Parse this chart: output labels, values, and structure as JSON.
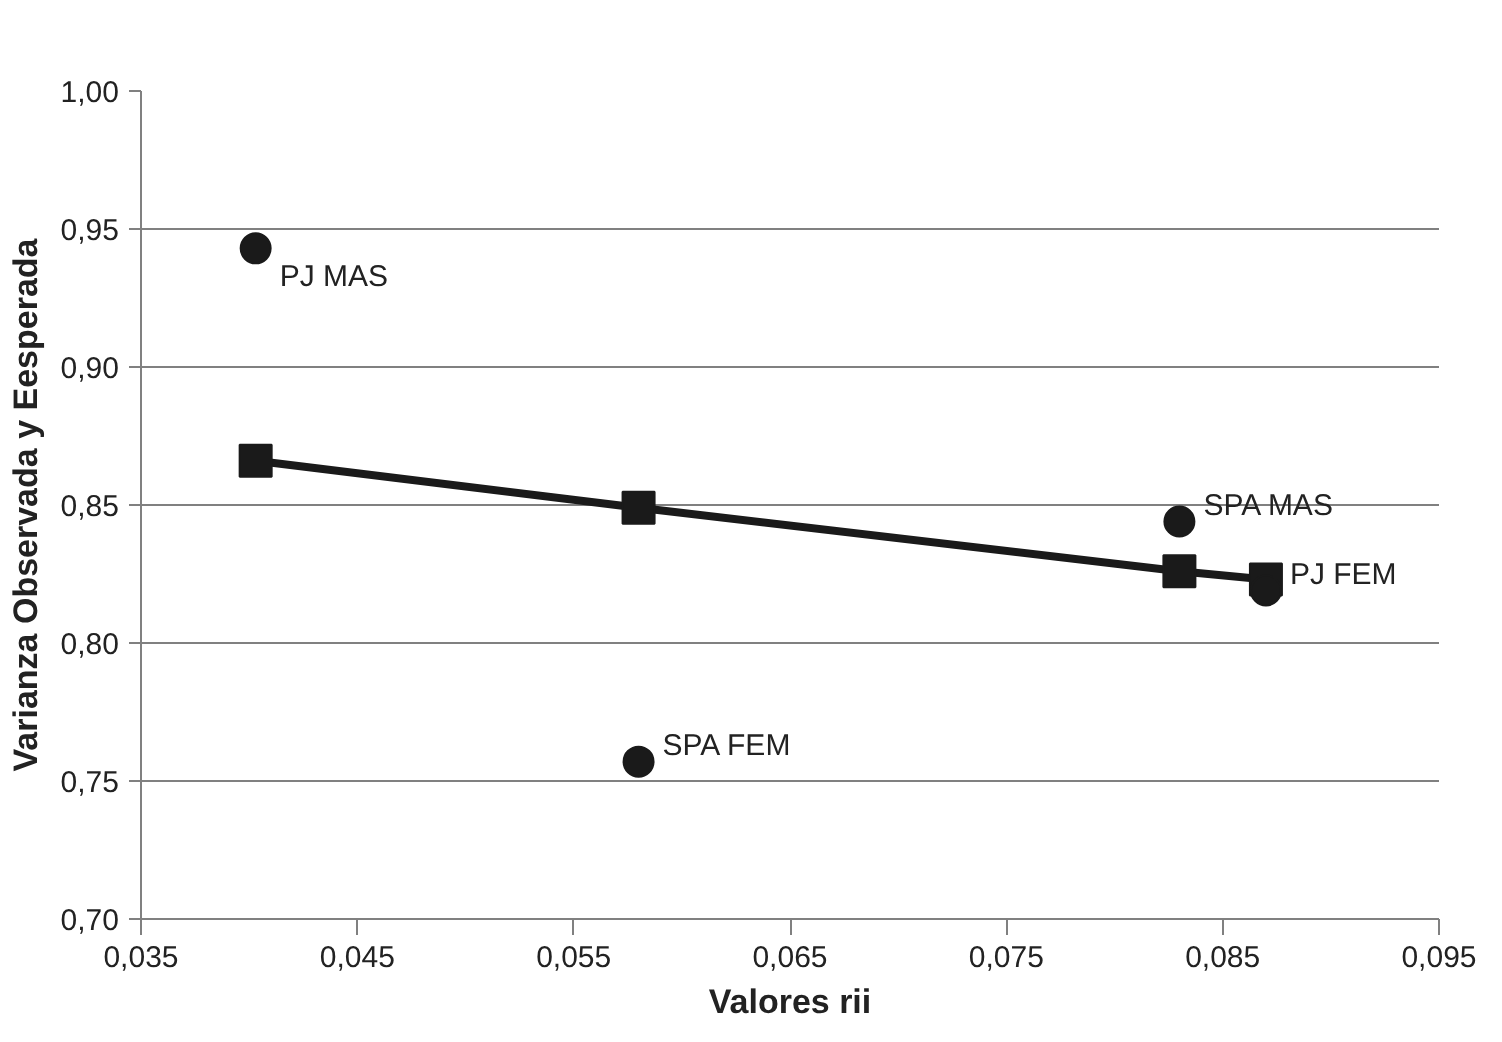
{
  "chart_data": {
    "type": "scatter",
    "xlabel": "Valores rii",
    "ylabel": "Varianza Observada y Eesperada",
    "xlim": [
      0.035,
      0.095
    ],
    "ylim": [
      0.7,
      1.0
    ],
    "xticks": [
      {
        "value": 0.035,
        "label": "0,035"
      },
      {
        "value": 0.045,
        "label": "0,045"
      },
      {
        "value": 0.055,
        "label": "0,055"
      },
      {
        "value": 0.065,
        "label": "0,065"
      },
      {
        "value": 0.075,
        "label": "0,075"
      },
      {
        "value": 0.085,
        "label": "0,085"
      },
      {
        "value": 0.095,
        "label": "0,095"
      }
    ],
    "yticks": [
      {
        "value": 0.7,
        "label": "0,70"
      },
      {
        "value": 0.75,
        "label": "0,75"
      },
      {
        "value": 0.8,
        "label": "0,80"
      },
      {
        "value": 0.85,
        "label": "0,85"
      },
      {
        "value": 0.9,
        "label": "0,90"
      },
      {
        "value": 0.95,
        "label": "0,95"
      },
      {
        "value": 1.0,
        "label": "1,00"
      }
    ],
    "grid": "y",
    "series": [
      {
        "marker": "circle",
        "color": "#1a1a1a",
        "x": [
          0.0403,
          0.058,
          0.083,
          0.087
        ],
        "values": [
          0.943,
          0.757,
          0.844,
          0.819
        ]
      },
      {
        "type": "line",
        "marker": "square",
        "line_style": "solid",
        "color": "#1a1a1a",
        "x": [
          0.0403,
          0.058,
          0.083,
          0.087
        ],
        "values": [
          0.866,
          0.849,
          0.826,
          0.823
        ]
      }
    ],
    "annotations": [
      {
        "text": "PJ MAS",
        "x": 0.0403,
        "y": 0.943
      },
      {
        "text": "SPA FEM",
        "x": 0.058,
        "y": 0.757
      },
      {
        "text": "SPA MAS",
        "x": 0.083,
        "y": 0.844
      },
      {
        "text": "PJ FEM",
        "x": 0.087,
        "y": 0.819
      }
    ]
  }
}
